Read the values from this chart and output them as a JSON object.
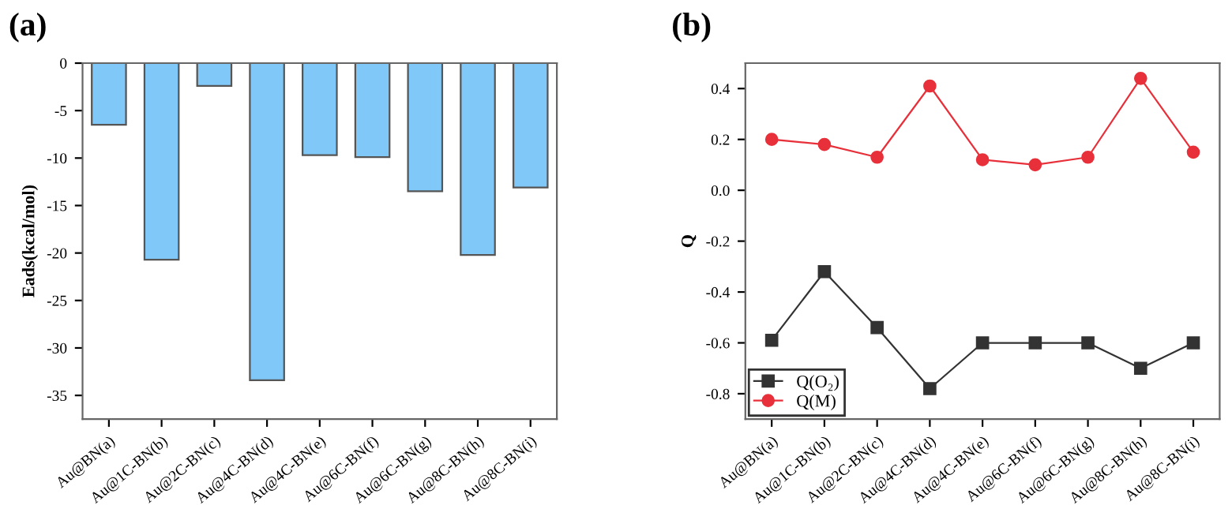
{
  "chart_data": [
    {
      "type": "bar",
      "title": "(a)",
      "ylabel": "Eads(kcal/mol)",
      "categories": [
        "Au@BN(a)",
        "Au@1C-BN(b)",
        "Au@2C-BN(c)",
        "Au@4C-BN(d)",
        "Au@4C-BN(e)",
        "Au@6C-BN(f)",
        "Au@6C-BN(g)",
        "Au@8C-BN(h)",
        "Au@8C-BN(i)"
      ],
      "values": [
        -6.5,
        -20.7,
        -2.4,
        -33.4,
        -9.7,
        -9.9,
        -13.5,
        -20.2,
        -13.1
      ],
      "color": "#80c8f8",
      "ylim": [
        -37.5,
        0
      ],
      "yticks": [
        0,
        -5,
        -10,
        -15,
        -20,
        -25,
        -30,
        -35
      ],
      "grid": false
    },
    {
      "type": "line",
      "title": "(b)",
      "ylabel": "Q",
      "categories": [
        "Au@BN(a)",
        "Au@1C-BN(b)",
        "Au@2C-BN(c)",
        "Au@4C-BN(d)",
        "Au@4C-BN(e)",
        "Au@6C-BN(f)",
        "Au@6C-BN(g)",
        "Au@8C-BN(h)",
        "Au@8C-BN(i)"
      ],
      "series": [
        {
          "name": "Q(O₂)",
          "color": "#333333",
          "marker": "square",
          "values": [
            -0.59,
            -0.32,
            -0.54,
            -0.78,
            -0.6,
            -0.6,
            -0.6,
            -0.7,
            -0.6
          ]
        },
        {
          "name": "Q(M)",
          "color": "#e8303a",
          "marker": "circle",
          "values": [
            0.2,
            0.18,
            0.13,
            0.41,
            0.12,
            0.1,
            0.13,
            0.44,
            0.15
          ]
        }
      ],
      "ylim": [
        -0.9,
        0.5
      ],
      "yticks": [
        {
          "value": -0.8,
          "label": "-0.8"
        },
        {
          "value": -0.6,
          "label": "-0.6"
        },
        {
          "value": -0.4,
          "label": "-0.4"
        },
        {
          "value": -0.2,
          "label": "-0.2"
        },
        {
          "value": 0,
          "label": "0.0"
        },
        {
          "value": 0.2,
          "label": "0.2"
        },
        {
          "value": 0.4,
          "label": "0.4"
        }
      ],
      "legend": "bottom left",
      "grid": false,
      "line_style": "solid"
    }
  ]
}
